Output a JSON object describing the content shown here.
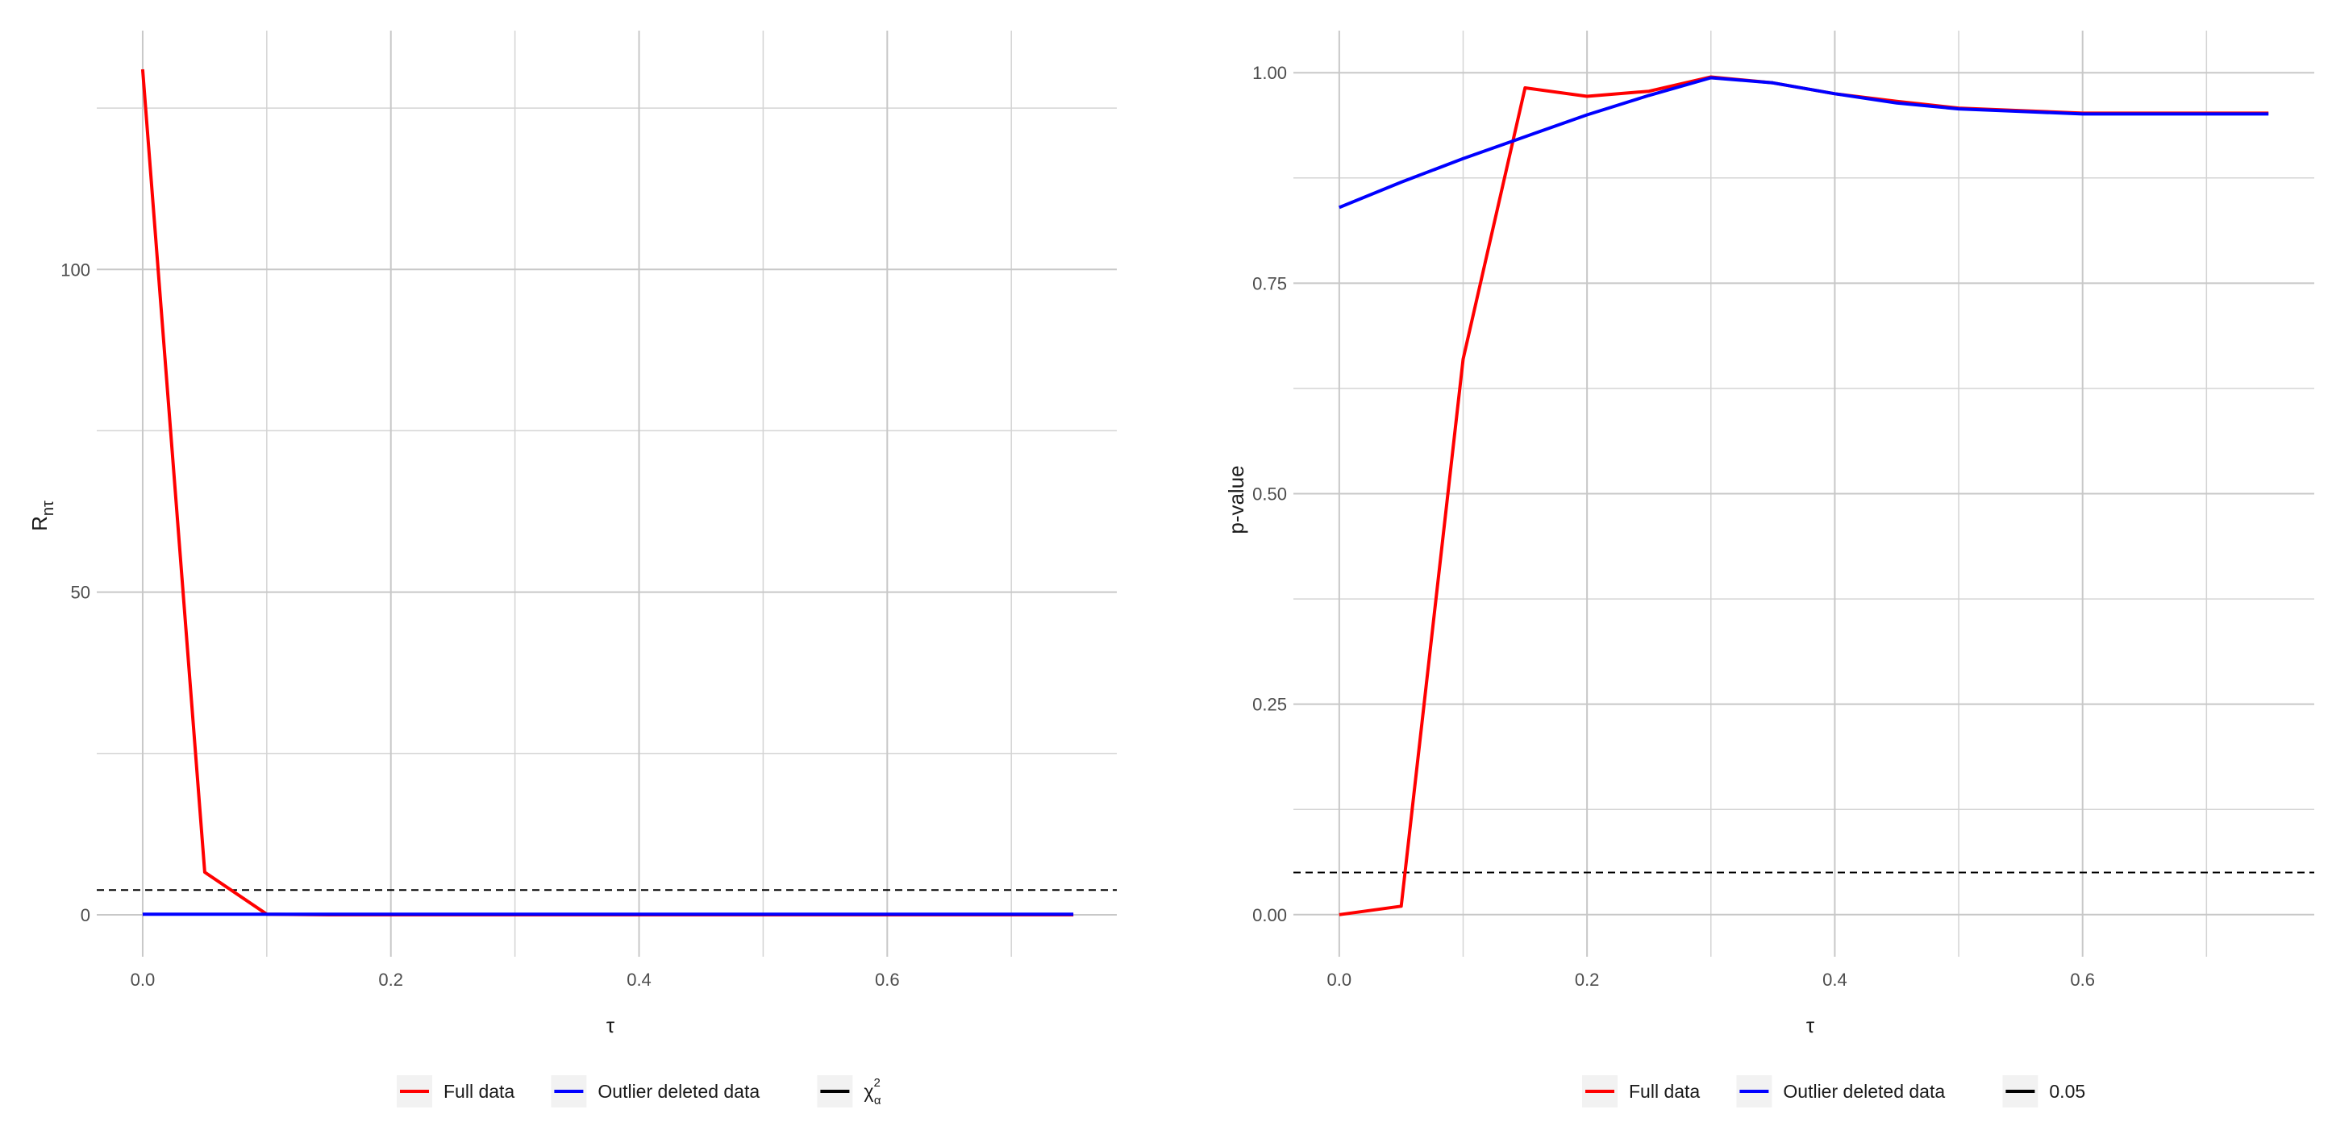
{
  "chart_data": [
    {
      "type": "line",
      "title": "",
      "xlabel": "τ",
      "ylabel_main": "R",
      "ylabel_sub": "nτ",
      "xlim": [
        -0.037,
        0.785
      ],
      "ylim": [
        -6.5,
        137
      ],
      "xticks": [
        0.0,
        0.2,
        0.4,
        0.6
      ],
      "xtick_labels": [
        "0.0",
        "0.2",
        "0.4",
        "0.6"
      ],
      "xminor": [
        0.1,
        0.3,
        0.5,
        0.7
      ],
      "yticks": [
        0,
        50,
        100
      ],
      "ytick_labels": [
        "0",
        "50",
        "100"
      ],
      "yminor": [
        25,
        75,
        125
      ],
      "grid": true,
      "legend_position": "bottom",
      "series": [
        {
          "name": "Full data",
          "color": "#ff0000",
          "style": "solid",
          "x": [
            0.0,
            0.05,
            0.1,
            0.15,
            0.2,
            0.25,
            0.3,
            0.35,
            0.4,
            0.45,
            0.5,
            0.55,
            0.6,
            0.65,
            0.7,
            0.75
          ],
          "y": [
            131,
            6.6,
            0.1,
            0,
            0,
            0,
            0,
            0,
            0,
            0,
            0,
            0,
            0,
            0,
            0,
            0
          ]
        },
        {
          "name": "Outlier deleted data",
          "color": "#0000ff",
          "style": "solid",
          "x": [
            0.0,
            0.05,
            0.1,
            0.15,
            0.2,
            0.25,
            0.3,
            0.35,
            0.4,
            0.45,
            0.5,
            0.55,
            0.6,
            0.65,
            0.7,
            0.75
          ],
          "y": [
            0.1,
            0.1,
            0.1,
            0.1,
            0.1,
            0.1,
            0.1,
            0.1,
            0.1,
            0.1,
            0.1,
            0.1,
            0.1,
            0.1,
            0.1,
            0.1
          ]
        }
      ],
      "hline": {
        "y": 3.84,
        "color": "#000000",
        "style": "dashed"
      },
      "legend": [
        {
          "label": "Full data",
          "color": "#ff0000",
          "style": "solid"
        },
        {
          "label": "Outlier deleted data",
          "color": "#0000ff",
          "style": "solid"
        },
        {
          "label": "χ",
          "sup": "2",
          "sub": "α",
          "color": "#000000",
          "style": "solid"
        }
      ]
    },
    {
      "type": "line",
      "title": "",
      "xlabel": "τ",
      "ylabel": "p-value",
      "xlim": [
        -0.037,
        0.787
      ],
      "ylim": [
        -0.05,
        1.05
      ],
      "xticks": [
        0.0,
        0.2,
        0.4,
        0.6
      ],
      "xtick_labels": [
        "0.0",
        "0.2",
        "0.4",
        "0.6"
      ],
      "xminor": [
        0.1,
        0.3,
        0.5,
        0.7
      ],
      "yticks": [
        0.0,
        0.25,
        0.5,
        0.75,
        1.0
      ],
      "ytick_labels": [
        "0.00",
        "0.25",
        "0.50",
        "0.75",
        "1.00"
      ],
      "yminor": [
        0.125,
        0.375,
        0.625,
        0.875
      ],
      "grid": true,
      "legend_position": "bottom",
      "series": [
        {
          "name": "Full data",
          "color": "#ff0000",
          "style": "solid",
          "x": [
            0.0,
            0.05,
            0.1,
            0.15,
            0.2,
            0.25,
            0.3,
            0.35,
            0.4,
            0.45,
            0.5,
            0.55,
            0.6,
            0.65,
            0.7,
            0.75
          ],
          "y": [
            0.0,
            0.01,
            0.66,
            0.982,
            0.972,
            0.978,
            0.995,
            0.988,
            0.975,
            0.966,
            0.958,
            0.955,
            0.952,
            0.952,
            0.952,
            0.952
          ]
        },
        {
          "name": "Outlier deleted data",
          "color": "#0000ff",
          "style": "solid",
          "x": [
            0.0,
            0.05,
            0.1,
            0.15,
            0.2,
            0.25,
            0.3,
            0.35,
            0.4,
            0.45,
            0.5,
            0.55,
            0.6,
            0.65,
            0.7,
            0.75
          ],
          "y": [
            0.84,
            0.87,
            0.898,
            0.924,
            0.95,
            0.973,
            0.994,
            0.988,
            0.975,
            0.964,
            0.957,
            0.954,
            0.951,
            0.951,
            0.951,
            0.951
          ]
        }
      ],
      "hline": {
        "y": 0.05,
        "color": "#000000",
        "style": "dashed"
      },
      "legend": [
        {
          "label": "Full data",
          "color": "#ff0000",
          "style": "solid"
        },
        {
          "label": "Outlier deleted data",
          "color": "#0000ff",
          "style": "solid"
        },
        {
          "label": "0.05",
          "color": "#000000",
          "style": "solid"
        }
      ]
    }
  ]
}
